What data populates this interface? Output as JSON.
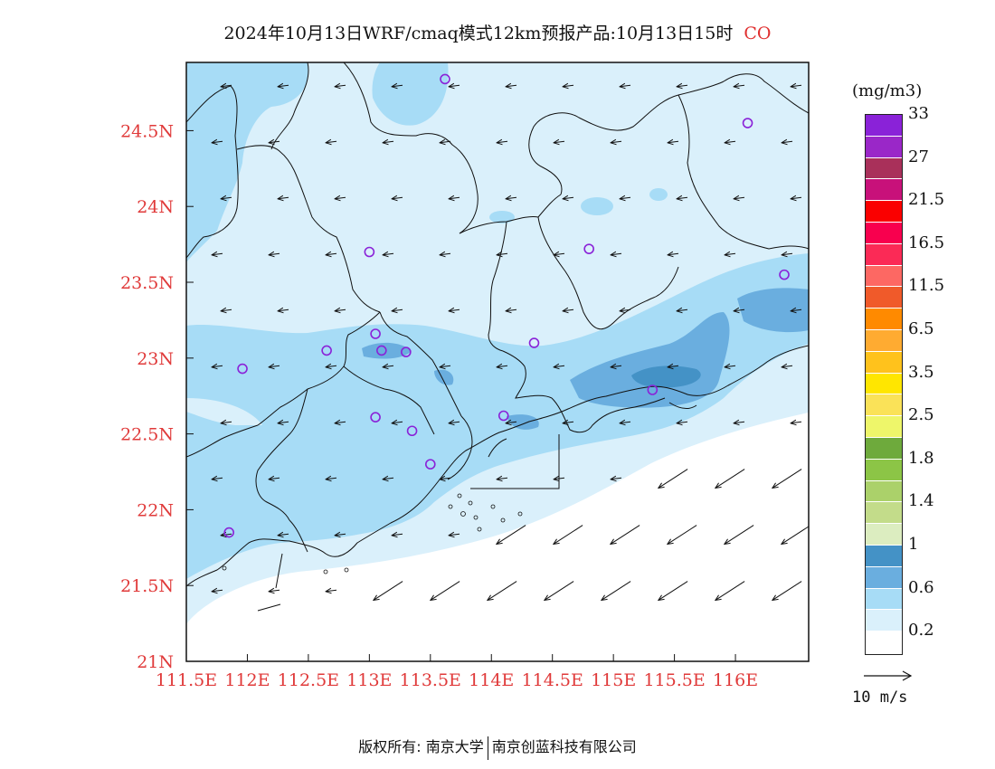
{
  "title": {
    "text": "2024年10月13日WRF/cmaq模式12km预报产品:10月13日15时",
    "species": "CO"
  },
  "map": {
    "lon_range": [
      111.5,
      116.6
    ],
    "lat_range": [
      21.0,
      24.95
    ],
    "x_ticks": [
      {
        "value": 111.5,
        "label": "111.5E"
      },
      {
        "value": 112.0,
        "label": "112E"
      },
      {
        "value": 112.5,
        "label": "112.5E"
      },
      {
        "value": 113.0,
        "label": "113E"
      },
      {
        "value": 113.5,
        "label": "113.5E"
      },
      {
        "value": 114.0,
        "label": "114E"
      },
      {
        "value": 114.5,
        "label": "114.5E"
      },
      {
        "value": 115.0,
        "label": "115E"
      },
      {
        "value": 115.5,
        "label": "115.5E"
      },
      {
        "value": 116.0,
        "label": "116E"
      }
    ],
    "y_ticks": [
      {
        "value": 21.0,
        "label": "21N"
      },
      {
        "value": 21.5,
        "label": "21.5N"
      },
      {
        "value": 22.0,
        "label": "22N"
      },
      {
        "value": 22.5,
        "label": "22.5N"
      },
      {
        "value": 23.0,
        "label": "23N"
      },
      {
        "value": 23.5,
        "label": "23.5N"
      },
      {
        "value": 24.0,
        "label": "24N"
      },
      {
        "value": 24.5,
        "label": "24.5N"
      }
    ],
    "stations": [
      [
        113.62,
        24.84
      ],
      [
        116.1,
        24.55
      ],
      [
        113.0,
        23.7
      ],
      [
        114.8,
        23.72
      ],
      [
        116.4,
        23.55
      ],
      [
        113.05,
        23.16
      ],
      [
        112.65,
        23.05
      ],
      [
        113.1,
        23.05
      ],
      [
        113.3,
        23.04
      ],
      [
        114.35,
        23.1
      ],
      [
        111.96,
        22.93
      ],
      [
        113.05,
        22.61
      ],
      [
        113.35,
        22.52
      ],
      [
        114.1,
        22.62
      ],
      [
        115.32,
        22.79
      ],
      [
        113.5,
        22.3
      ],
      [
        111.85,
        21.85
      ]
    ],
    "wind": {
      "land_vector": [
        -0.75,
        -0.1
      ],
      "sea_vector": [
        -0.85,
        -0.55
      ]
    }
  },
  "legend": {
    "unit": "(mg/m3)",
    "colors": [
      "#ffffff",
      "#daf0fb",
      "#a7dcf6",
      "#6aaedf",
      "#4492c6",
      "#dcedc0",
      "#c3dc8a",
      "#abd16a",
      "#8cc546",
      "#6eaa3c",
      "#eef66a",
      "#fae258",
      "#ffe600",
      "#ffc21c",
      "#ffab31",
      "#ff8a00",
      "#f05a2a",
      "#fd6863",
      "#fb2a56",
      "#f8004e",
      "#fa0000",
      "#c8117a",
      "#a9305a",
      "#9a27c8",
      "#8a22d8"
    ],
    "labels": [
      "0.2",
      "0.6",
      "1",
      "1.4",
      "1.8",
      "2.5",
      "3.5",
      "6.5",
      "11.5",
      "16.5",
      "21.5",
      "27",
      "33"
    ]
  },
  "reference": {
    "label": "10 m/s"
  },
  "footer": {
    "left": "版权所有: 南京大学",
    "right": "南京创蓝科技有限公司"
  }
}
